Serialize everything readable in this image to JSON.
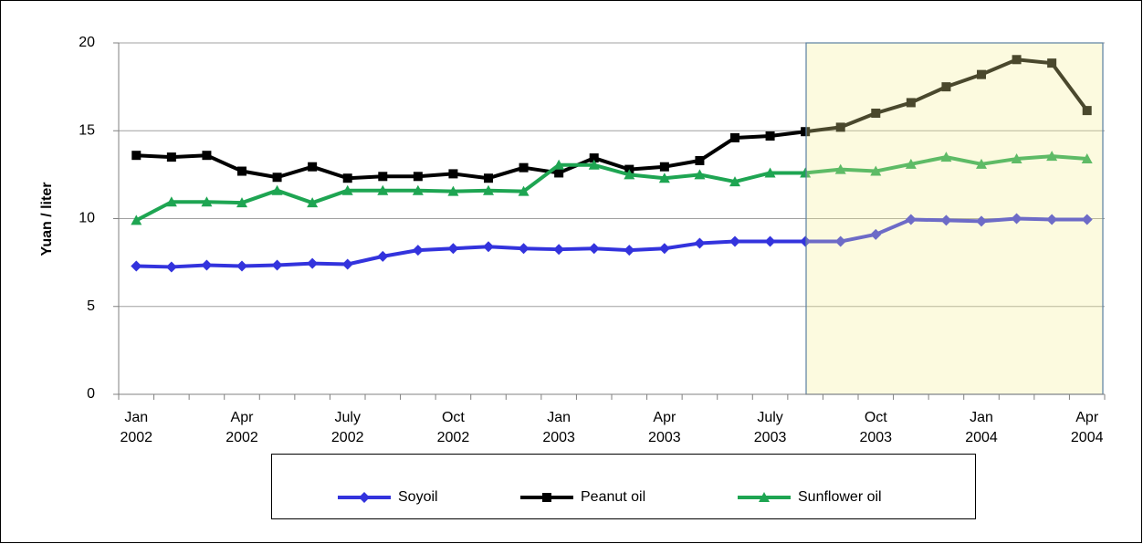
{
  "chart_data": {
    "type": "line",
    "y_label": "Yuan / liter",
    "categories": [
      "Jan 2002",
      null,
      null,
      "Apr 2002",
      null,
      null,
      "July 2002",
      null,
      null,
      "Oct 2002",
      null,
      null,
      "Jan 2003",
      null,
      null,
      "Apr 2003",
      null,
      null,
      "July 2003",
      null,
      null,
      "Oct 2003",
      null,
      null,
      "Jan 2004",
      null,
      null,
      "Apr 2004"
    ],
    "series": [
      {
        "name": "Soyoil",
        "color": "#3333dd",
        "marker": "diamond",
        "values": [
          7.3,
          7.25,
          7.35,
          7.3,
          7.35,
          7.45,
          7.4,
          7.85,
          8.2,
          8.3,
          8.4,
          8.3,
          8.25,
          8.3,
          8.2,
          8.3,
          8.6,
          8.7,
          8.7,
          8.7,
          8.7,
          9.1,
          9.95,
          9.9,
          9.85,
          10.0,
          9.95,
          9.95
        ]
      },
      {
        "name": "Peanut oil",
        "color": "#000000",
        "marker": "square",
        "values": [
          13.6,
          13.5,
          13.6,
          12.7,
          12.35,
          12.95,
          12.3,
          12.4,
          12.4,
          12.55,
          12.3,
          12.9,
          12.6,
          13.45,
          12.8,
          12.95,
          13.3,
          14.6,
          14.7,
          14.95,
          15.2,
          16.0,
          16.6,
          17.5,
          18.2,
          19.05,
          18.85,
          16.15
        ]
      },
      {
        "name": "Sunflower oil",
        "color": "#1ea552",
        "marker": "triangle",
        "values": [
          9.9,
          10.95,
          10.95,
          10.9,
          11.6,
          10.9,
          11.6,
          11.6,
          11.6,
          11.55,
          11.6,
          11.55,
          13.05,
          13.05,
          12.5,
          12.3,
          12.5,
          12.1,
          12.6,
          12.6,
          12.8,
          12.7,
          13.1,
          13.5,
          13.1,
          13.4,
          13.55,
          13.4
        ]
      }
    ],
    "ylim": [
      0,
      20
    ],
    "yticks": [
      0,
      5,
      10,
      15,
      20
    ],
    "grid": true,
    "legend": "bottom"
  }
}
